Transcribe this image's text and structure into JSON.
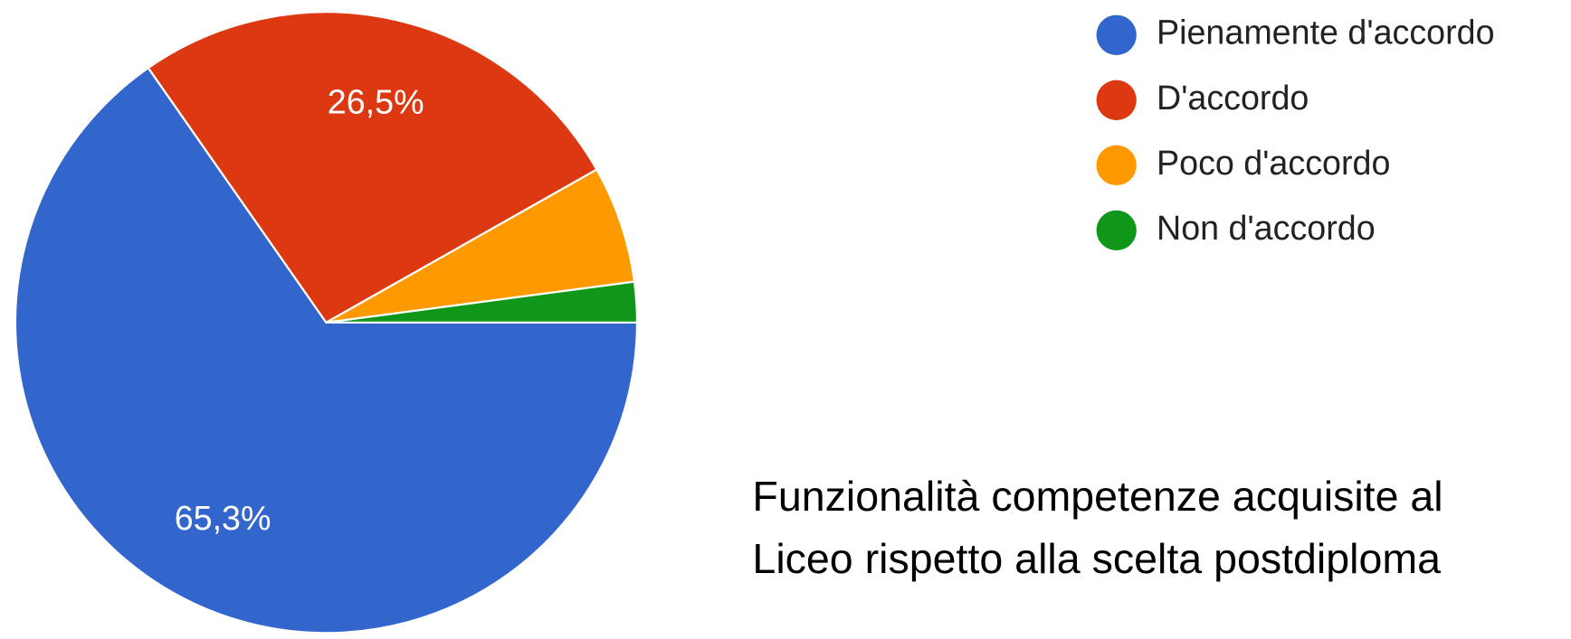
{
  "chart_data": {
    "type": "pie",
    "title": "Funzionalità competenze acquisite al Liceo rispetto alla scelta postdiploma",
    "categories": [
      "Pienamente d'accordo",
      "D'accordo",
      "Poco d'accordo",
      "Non d'accordo"
    ],
    "values": [
      65.3,
      26.5,
      6.1,
      2.1
    ],
    "value_labels": [
      "65,3%",
      "26,5%",
      null,
      null
    ],
    "colors": [
      "#3366cc",
      "#dc3912",
      "#ff9900",
      "#109618"
    ],
    "legend": "top-right"
  }
}
